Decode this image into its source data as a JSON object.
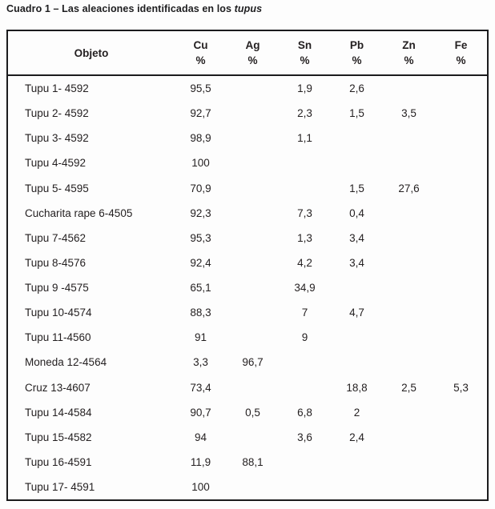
{
  "caption": {
    "text": "Cuadro 1 – Las aleaciones identificadas en los ",
    "italic_word": "tupus"
  },
  "colors": {
    "text": "#231f20",
    "border": "#1b1b1d",
    "background": "#fdfdfd"
  },
  "table": {
    "header": {
      "object_column": "Objeto",
      "unit": "%",
      "columns": [
        "Cu",
        "Ag",
        "Sn",
        "Pb",
        "Zn",
        "Fe"
      ]
    },
    "rows": [
      {
        "label": "Tupu 1- 4592",
        "values": [
          "95,5",
          "",
          "1,9",
          "2,6",
          "",
          ""
        ]
      },
      {
        "label": "Tupu 2- 4592",
        "values": [
          "92,7",
          "",
          "2,3",
          "1,5",
          "3,5",
          ""
        ]
      },
      {
        "label": "Tupu 3- 4592",
        "values": [
          "98,9",
          "",
          "1,1",
          "",
          "",
          ""
        ]
      },
      {
        "label": "Tupu 4-4592",
        "values": [
          "100",
          "",
          "",
          "",
          "",
          ""
        ]
      },
      {
        "label": "Tupu 5- 4595",
        "values": [
          "70,9",
          "",
          "",
          "1,5",
          "27,6",
          ""
        ]
      },
      {
        "label": "Cucharita rape 6-4505",
        "values": [
          "92,3",
          "",
          "7,3",
          "0,4",
          "",
          ""
        ]
      },
      {
        "label": "Tupu 7-4562",
        "values": [
          "95,3",
          "",
          "1,3",
          "3,4",
          "",
          ""
        ]
      },
      {
        "label": "Tupu 8-4576",
        "values": [
          "92,4",
          "",
          "4,2",
          "3,4",
          "",
          ""
        ]
      },
      {
        "label": "Tupu 9 -4575",
        "values": [
          "65,1",
          "",
          "34,9",
          "",
          "",
          ""
        ]
      },
      {
        "label": "Tupu 10-4574",
        "values": [
          "88,3",
          "",
          "7",
          "4,7",
          "",
          ""
        ]
      },
      {
        "label": "Tupu 11-4560",
        "values": [
          "91",
          "",
          "9",
          "",
          "",
          ""
        ]
      },
      {
        "label": "Moneda 12-4564",
        "values": [
          "3,3",
          "96,7",
          "",
          "",
          "",
          ""
        ]
      },
      {
        "label": "Cruz 13-4607",
        "values": [
          "73,4",
          "",
          "",
          "18,8",
          "2,5",
          "5,3"
        ]
      },
      {
        "label": "Tupu 14-4584",
        "values": [
          "90,7",
          "0,5",
          "6,8",
          "2",
          "",
          ""
        ]
      },
      {
        "label": "Tupu 15-4582",
        "values": [
          "94",
          "",
          "3,6",
          "2,4",
          "",
          ""
        ]
      },
      {
        "label": "Tupu 16-4591",
        "values": [
          "11,9",
          "88,1",
          "",
          "",
          "",
          ""
        ]
      },
      {
        "label": "Tupu 17- 4591",
        "values": [
          "100",
          "",
          "",
          "",
          "",
          ""
        ]
      }
    ]
  }
}
